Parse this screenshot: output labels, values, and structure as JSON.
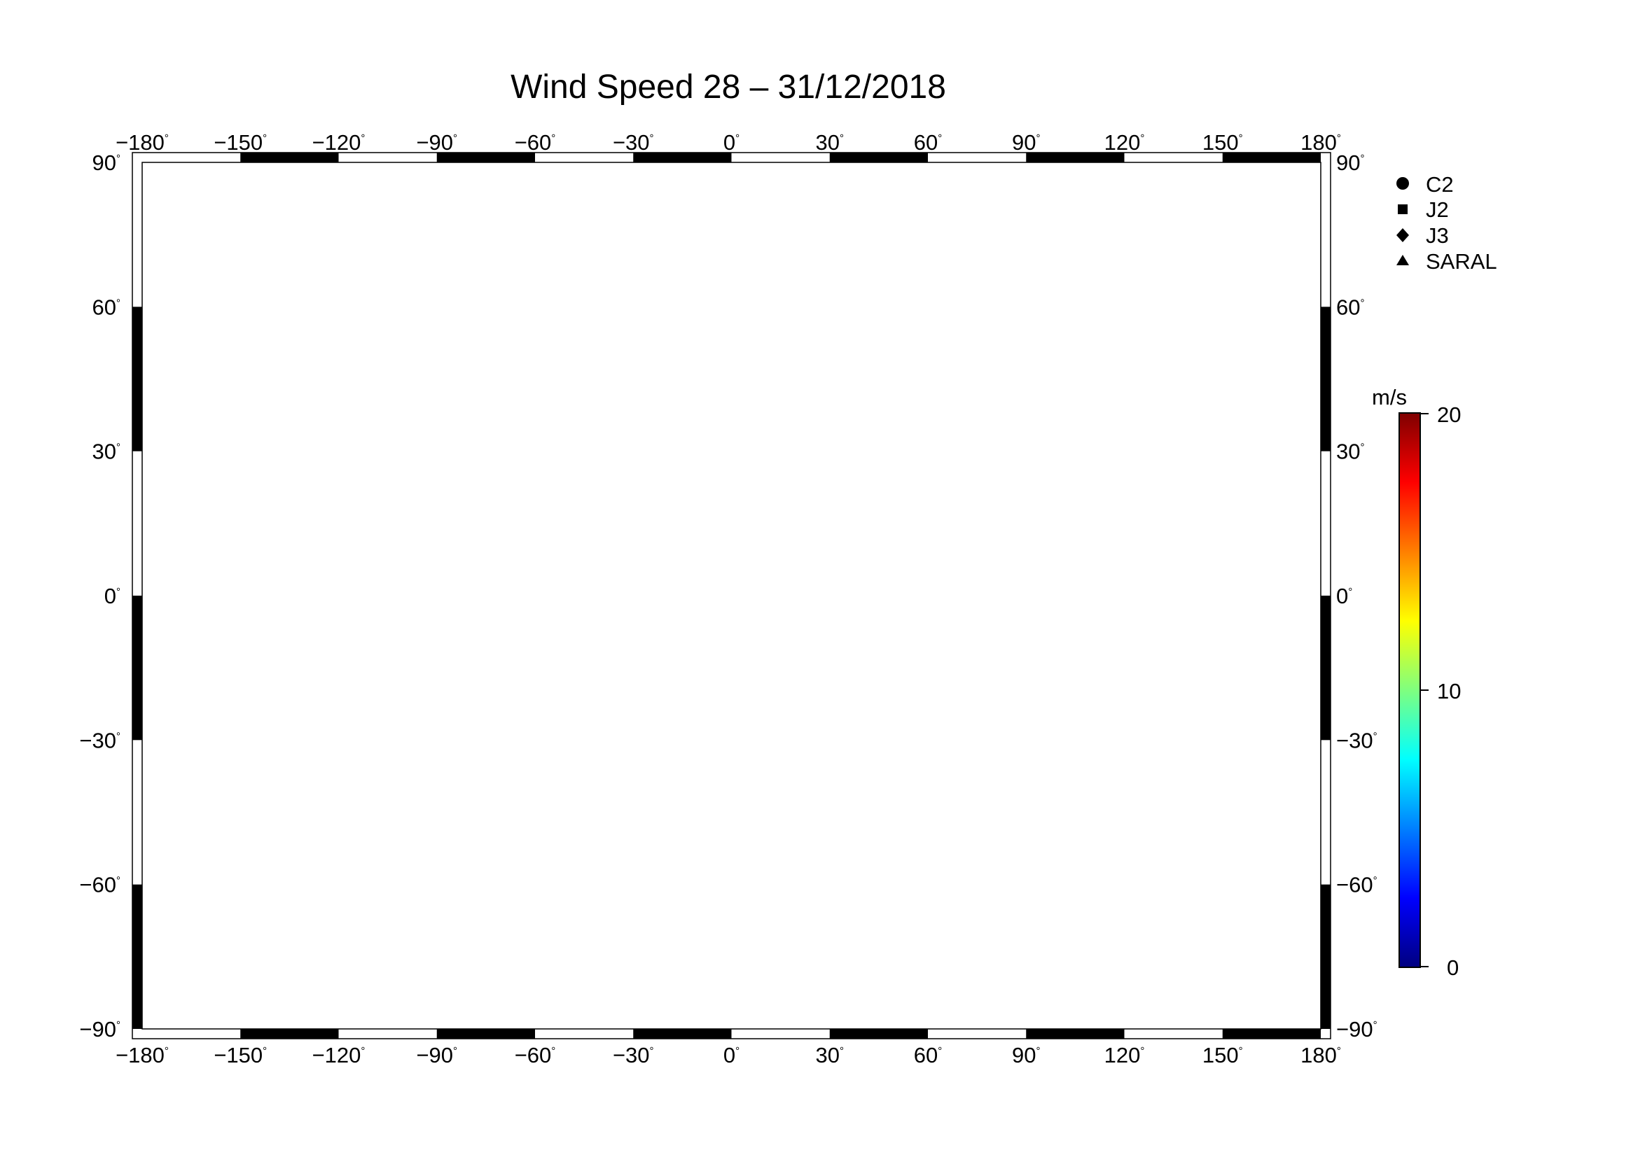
{
  "title": "Wind Speed 28 – 31/12/2018",
  "lon_ticks": [
    "−180",
    "−150",
    "−120",
    "−90",
    "−60",
    "−30",
    "0",
    "30",
    "60",
    "90",
    "120",
    "150",
    "180"
  ],
  "lat_ticks": [
    "90",
    "60",
    "30",
    "0",
    "−30",
    "−60",
    "−90"
  ],
  "degree_symbol": "°",
  "legend": {
    "items": [
      {
        "label": "C2",
        "marker": "circle"
      },
      {
        "label": "J2",
        "marker": "square"
      },
      {
        "label": "J3",
        "marker": "diamond"
      },
      {
        "label": "SARAL",
        "marker": "triangle"
      }
    ]
  },
  "colorbar": {
    "unit": "m/s",
    "min_label": "0",
    "mid_label": "10",
    "max_label": "20",
    "min": 0,
    "max": 20,
    "colors": [
      "#00007f",
      "#0000ff",
      "#007fff",
      "#00ffff",
      "#7fff7f",
      "#ffff00",
      "#ff7f00",
      "#ff0000",
      "#7f0000"
    ]
  },
  "map": {
    "projection": "equirectangular",
    "lon_range": [
      -180,
      180
    ],
    "lat_range": [
      -90,
      90
    ],
    "land_color": "#bebebe",
    "ocean_color": "#ffffff",
    "grid_interval": 30
  }
}
